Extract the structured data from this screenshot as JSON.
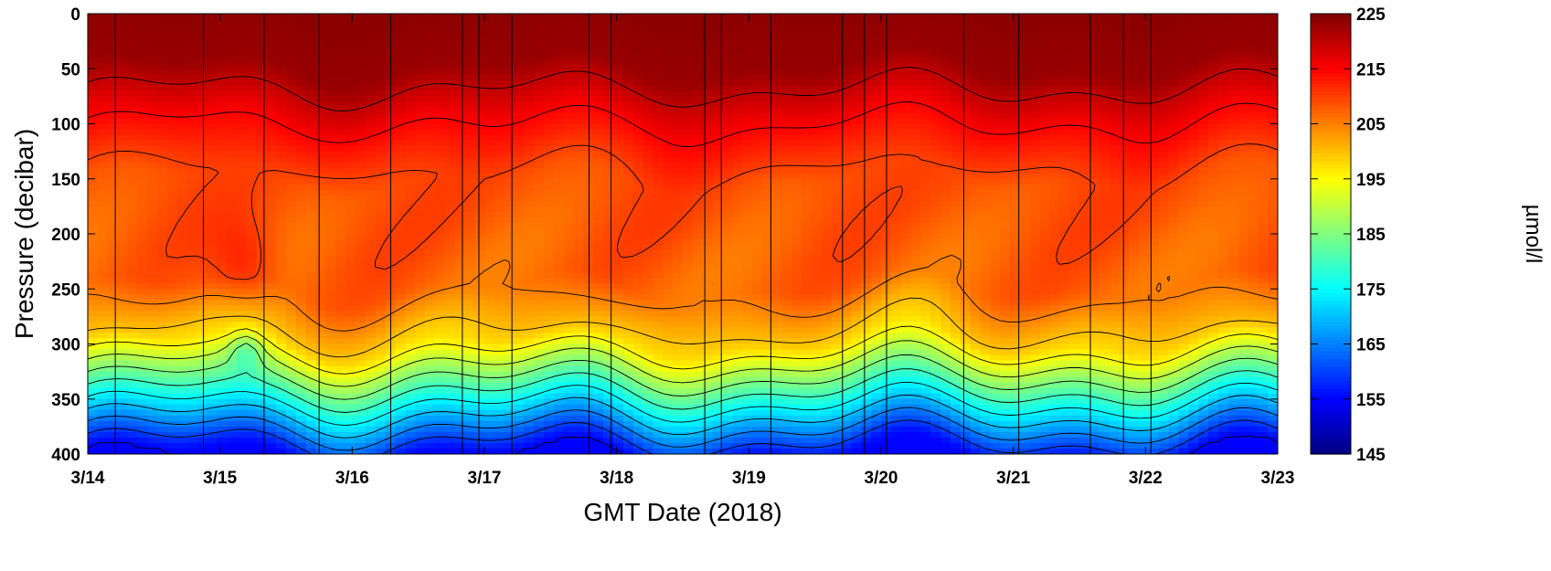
{
  "chart_data": {
    "type": "heatmap",
    "title": "",
    "xlabel": "GMT Date (2018)",
    "ylabel": "Pressure (decibar)",
    "x_unit": "days",
    "x_tick_labels": [
      "3/14",
      "3/15",
      "3/16",
      "3/17",
      "3/18",
      "3/19",
      "3/20",
      "3/21",
      "3/22",
      "3/23"
    ],
    "xlim": [
      "2018-03-14",
      "2018-03-23"
    ],
    "y_ticks": [
      0,
      50,
      100,
      150,
      200,
      250,
      300,
      350,
      400
    ],
    "ylim": [
      0,
      400
    ],
    "y_reversed": true,
    "colorbar": {
      "label": "µmol/l",
      "ticks": [
        145,
        155,
        165,
        175,
        185,
        195,
        205,
        215,
        225
      ],
      "range": [
        145,
        225
      ],
      "colormap": "jet"
    },
    "profile_dates": [
      "2018-03-14 05:00",
      "2018-03-14 21:00",
      "2018-03-15 08:00",
      "2018-03-15 18:00",
      "2018-03-16 07:00",
      "2018-03-16 20:00",
      "2018-03-16 23:00",
      "2018-03-17 05:00",
      "2018-03-17 19:00",
      "2018-03-17 23:00",
      "2018-03-18 16:00",
      "2018-03-18 19:00",
      "2018-03-19 04:00",
      "2018-03-19 17:00",
      "2018-03-19 21:00",
      "2018-03-20 01:00",
      "2018-03-20 15:00",
      "2018-03-21 01:00",
      "2018-03-21 14:00",
      "2018-03-21 20:00",
      "2018-03-22 01:00"
    ],
    "depth_profile": {
      "pressure": [
        0,
        50,
        100,
        150,
        200,
        250,
        300,
        350,
        400
      ],
      "values": [
        224,
        223,
        215,
        209,
        208,
        207,
        198,
        177,
        155
      ]
    },
    "contour_interval": 5
  }
}
